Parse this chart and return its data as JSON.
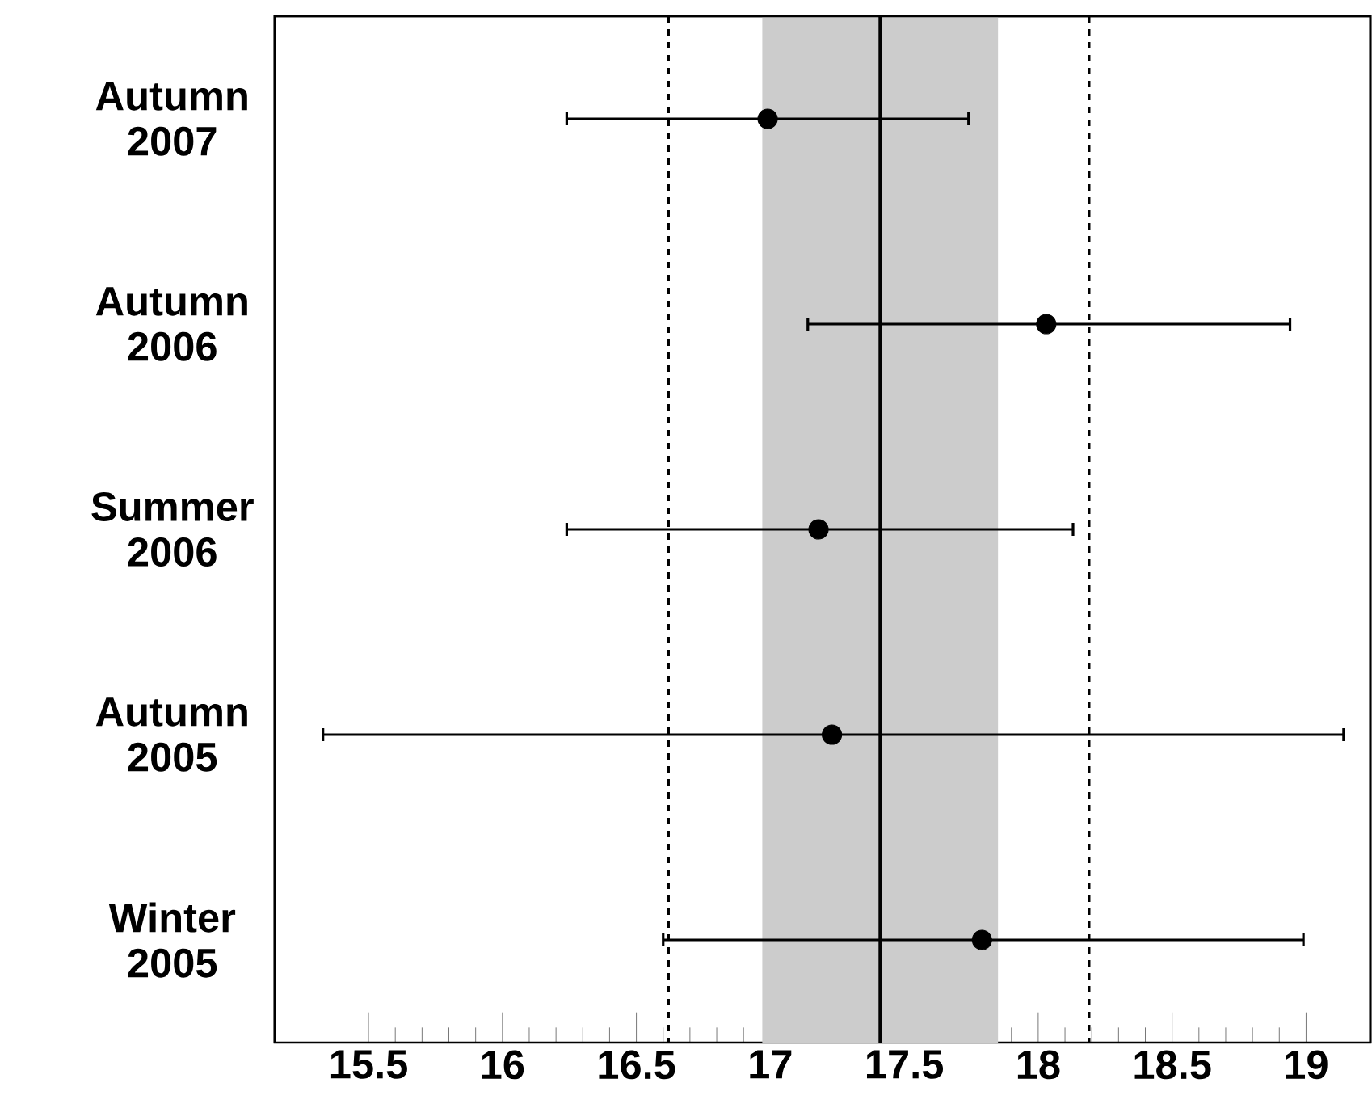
{
  "chart_data": {
    "type": "scatter",
    "orientation": "horizontal",
    "categories": [
      "Autumn 2007",
      "Autumn 2006",
      "Summer 2006",
      "Autumn 2005",
      "Winter 2005"
    ],
    "values": [
      16.99,
      18.03,
      17.18,
      17.23,
      17.79
    ],
    "errors": [
      [
        16.24,
        17.74
      ],
      [
        17.14,
        18.94
      ],
      [
        16.24,
        18.13
      ],
      [
        15.33,
        19.14
      ],
      [
        16.6,
        18.99
      ]
    ],
    "color": "#000000",
    "marker": "circle",
    "xlim": [
      15.15,
      19.24
    ],
    "xticks": [
      15.5,
      16,
      16.5,
      17,
      17.5,
      18,
      18.5,
      19
    ],
    "ref_lines": [
      {
        "axis": "x",
        "value": 16.62,
        "line_style": "dashed"
      },
      {
        "axis": "x",
        "value": 17.41,
        "line_style": "solid"
      },
      {
        "axis": "x",
        "value": 18.19,
        "line_style": "dashed"
      }
    ],
    "bands": [
      {
        "axis": "x",
        "from": 16.97,
        "to": 17.85,
        "color": "#cccccc"
      }
    ],
    "grid": false
  }
}
